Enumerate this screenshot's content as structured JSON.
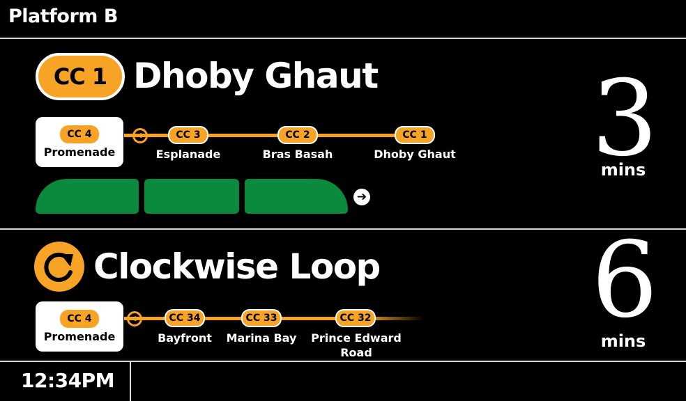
{
  "header": {
    "platform": "Platform B"
  },
  "trains": [
    {
      "badge": "CC 1",
      "destination": "Dhoby Ghaut",
      "minutes": "3",
      "minutes_label": "mins",
      "origin": {
        "code": "CC 4",
        "name": "Promenade"
      },
      "stops": [
        {
          "code": "CC 3",
          "name": "Esplanade"
        },
        {
          "code": "CC 2",
          "name": "Bras Basah"
        },
        {
          "code": "CC 1",
          "name": "Dhoby Ghaut"
        }
      ],
      "train_cars": 3
    },
    {
      "icon": "clockwise-loop-icon",
      "destination": "Clockwise Loop",
      "minutes": "6",
      "minutes_label": "mins",
      "origin": {
        "code": "CC 4",
        "name": "Promenade"
      },
      "stops": [
        {
          "code": "CC 34",
          "name": "Bayfront"
        },
        {
          "code": "CC 33",
          "name": "Marina Bay"
        },
        {
          "code": "CC 32",
          "name": "Prince Edward Road"
        }
      ]
    }
  ],
  "footer": {
    "time": "12:34PM"
  },
  "colors": {
    "line": "#f7a326",
    "train": "#0a8a3c",
    "background": "#000000",
    "divider": "#d9d9d9"
  }
}
